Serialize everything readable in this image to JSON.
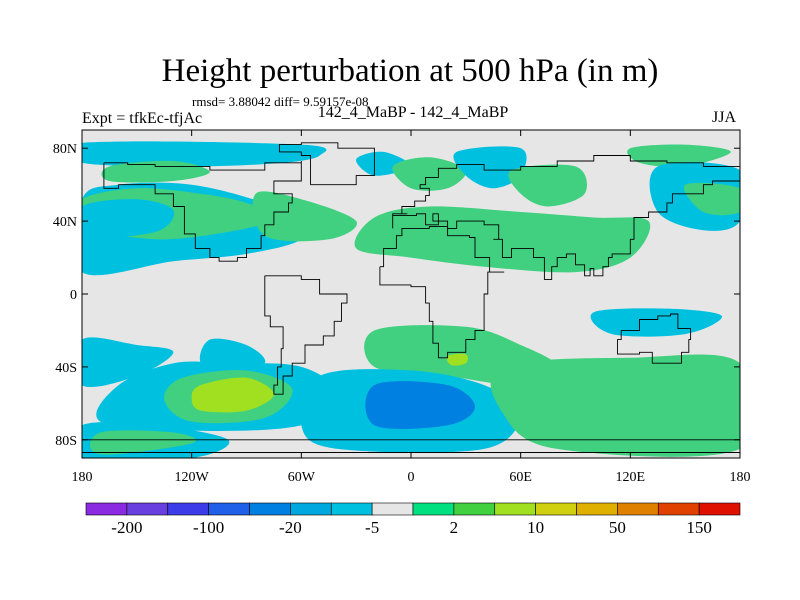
{
  "title": "Height perturbation at 500 hPa (in m)",
  "stats": "rmsd= 3.88042 diff= 9.59157e-08",
  "experiment": "Expt = tfkEc-tfjAc",
  "case_label": "142_4_MaBP - 142_4_MaBP",
  "season": "JJA",
  "map": {
    "lon_range": [
      -180,
      180
    ],
    "lat_range": [
      -90,
      90
    ],
    "x_ticks": [
      {
        "value": -180,
        "label": "180"
      },
      {
        "value": -120,
        "label": "120W"
      },
      {
        "value": -60,
        "label": "60W"
      },
      {
        "value": 0,
        "label": "0"
      },
      {
        "value": 60,
        "label": "60E"
      },
      {
        "value": 120,
        "label": "120E"
      },
      {
        "value": 180,
        "label": "180"
      }
    ],
    "y_ticks": [
      {
        "value": 80,
        "label": "80N"
      },
      {
        "value": 40,
        "label": "40N"
      },
      {
        "value": 0,
        "label": "0"
      },
      {
        "value": -40,
        "label": "40S"
      },
      {
        "value": -80,
        "label": "80S"
      }
    ],
    "background_color": "#e6e6e6",
    "fields": [
      {
        "color": "#00c0e0",
        "pts": [
          [
            -180,
            83
          ],
          [
            -60,
            82
          ],
          [
            -50,
            76
          ],
          [
            -70,
            72
          ],
          [
            -120,
            70
          ],
          [
            -180,
            72
          ]
        ]
      },
      {
        "color": "#00c0e0",
        "pts": [
          [
            -180,
            52
          ],
          [
            -160,
            60
          ],
          [
            -120,
            60
          ],
          [
            -80,
            50
          ],
          [
            -65,
            42
          ],
          [
            -60,
            30
          ],
          [
            -90,
            22
          ],
          [
            -130,
            18
          ],
          [
            -180,
            12
          ]
        ]
      },
      {
        "color": "#40d080",
        "pts": [
          [
            -180,
            52
          ],
          [
            -150,
            58
          ],
          [
            -115,
            55
          ],
          [
            -90,
            50
          ],
          [
            -75,
            42
          ],
          [
            -95,
            35
          ],
          [
            -140,
            30
          ],
          [
            -180,
            38
          ]
        ]
      },
      {
        "color": "#00c0e0",
        "pts": [
          [
            -180,
            48
          ],
          [
            -150,
            52
          ],
          [
            -130,
            46
          ],
          [
            -140,
            34
          ],
          [
            -180,
            32
          ]
        ]
      },
      {
        "color": "#40d080",
        "pts": [
          [
            -165,
            70
          ],
          [
            -130,
            73
          ],
          [
            -110,
            67
          ],
          [
            -130,
            62
          ],
          [
            -165,
            62
          ]
        ]
      },
      {
        "color": "#40d080",
        "pts": [
          [
            -85,
            55
          ],
          [
            -60,
            52
          ],
          [
            -30,
            40
          ],
          [
            -45,
            30
          ],
          [
            -80,
            32
          ]
        ]
      },
      {
        "color": "#00c0e0",
        "pts": [
          [
            -30,
            74
          ],
          [
            -15,
            78
          ],
          [
            0,
            70
          ],
          [
            -20,
            65
          ]
        ]
      },
      {
        "color": "#40d080",
        "pts": [
          [
            -10,
            70
          ],
          [
            10,
            75
          ],
          [
            30,
            68
          ],
          [
            20,
            58
          ],
          [
            0,
            58
          ]
        ]
      },
      {
        "color": "#40d080",
        "pts": [
          [
            -20,
            42
          ],
          [
            10,
            48
          ],
          [
            60,
            45
          ],
          [
            100,
            42
          ],
          [
            130,
            40
          ],
          [
            120,
            20
          ],
          [
            90,
            12
          ],
          [
            40,
            15
          ],
          [
            0,
            20
          ],
          [
            -30,
            25
          ]
        ]
      },
      {
        "color": "#00c0e0",
        "pts": [
          [
            25,
            78
          ],
          [
            60,
            80
          ],
          [
            60,
            65
          ],
          [
            45,
            58
          ],
          [
            30,
            65
          ]
        ]
      },
      {
        "color": "#40d080",
        "pts": [
          [
            55,
            68
          ],
          [
            90,
            70
          ],
          [
            95,
            55
          ],
          [
            75,
            48
          ],
          [
            60,
            55
          ]
        ]
      },
      {
        "color": "#40d080",
        "pts": [
          [
            120,
            80
          ],
          [
            150,
            82
          ],
          [
            175,
            78
          ],
          [
            150,
            70
          ],
          [
            125,
            72
          ]
        ]
      },
      {
        "color": "#00c0e0",
        "pts": [
          [
            135,
            70
          ],
          [
            180,
            68
          ],
          [
            180,
            40
          ],
          [
            160,
            35
          ],
          [
            135,
            45
          ]
        ]
      },
      {
        "color": "#40d080",
        "pts": [
          [
            150,
            60
          ],
          [
            180,
            58
          ],
          [
            180,
            45
          ],
          [
            160,
            45
          ]
        ]
      },
      {
        "color": "#00c0e0",
        "pts": [
          [
            100,
            -10
          ],
          [
            140,
            -8
          ],
          [
            170,
            -12
          ],
          [
            150,
            -22
          ],
          [
            110,
            -22
          ]
        ]
      },
      {
        "color": "#00c0e0",
        "pts": [
          [
            -180,
            -25
          ],
          [
            -150,
            -28
          ],
          [
            -130,
            -32
          ],
          [
            -150,
            -45
          ],
          [
            -180,
            -50
          ]
        ]
      },
      {
        "color": "#00c0e0",
        "pts": [
          [
            -110,
            -25
          ],
          [
            -90,
            -28
          ],
          [
            -80,
            -38
          ],
          [
            -100,
            -45
          ],
          [
            -115,
            -38
          ]
        ]
      },
      {
        "color": "#00c0e0",
        "pts": [
          [
            -130,
            -38
          ],
          [
            -100,
            -38
          ],
          [
            -60,
            -40
          ],
          [
            -40,
            -55
          ],
          [
            -60,
            -72
          ],
          [
            -120,
            -75
          ],
          [
            -170,
            -70
          ],
          [
            -160,
            -50
          ]
        ]
      },
      {
        "color": "#40d080",
        "pts": [
          [
            -125,
            -46
          ],
          [
            -90,
            -42
          ],
          [
            -65,
            -52
          ],
          [
            -80,
            -68
          ],
          [
            -120,
            -70
          ],
          [
            -135,
            -58
          ]
        ]
      },
      {
        "color": "#a0e020",
        "pts": [
          [
            -115,
            -50
          ],
          [
            -90,
            -46
          ],
          [
            -75,
            -55
          ],
          [
            -90,
            -64
          ],
          [
            -115,
            -64
          ],
          [
            -120,
            -57
          ]
        ]
      },
      {
        "color": "#40d080",
        "pts": [
          [
            -20,
            -20
          ],
          [
            30,
            -18
          ],
          [
            60,
            -28
          ],
          [
            80,
            -40
          ],
          [
            60,
            -50
          ],
          [
            20,
            -45
          ],
          [
            -20,
            -40
          ]
        ]
      },
      {
        "color": "#a0e020",
        "pts": [
          [
            20,
            -34
          ],
          [
            30,
            -33
          ],
          [
            30,
            -38
          ],
          [
            22,
            -39
          ]
        ]
      },
      {
        "color": "#00c0e0",
        "pts": [
          [
            -50,
            -45
          ],
          [
            0,
            -42
          ],
          [
            40,
            -50
          ],
          [
            60,
            -65
          ],
          [
            40,
            -85
          ],
          [
            -40,
            -85
          ],
          [
            -60,
            -72
          ]
        ]
      },
      {
        "color": "#0080e0",
        "pts": [
          [
            -20,
            -50
          ],
          [
            20,
            -50
          ],
          [
            35,
            -62
          ],
          [
            20,
            -72
          ],
          [
            -20,
            -72
          ]
        ]
      },
      {
        "color": "#40d080",
        "pts": [
          [
            50,
            -40
          ],
          [
            120,
            -35
          ],
          [
            180,
            -38
          ],
          [
            180,
            -85
          ],
          [
            80,
            -85
          ],
          [
            50,
            -65
          ]
        ]
      },
      {
        "color": "#00c0e0",
        "pts": [
          [
            -180,
            -72
          ],
          [
            -140,
            -72
          ],
          [
            -100,
            -80
          ],
          [
            -120,
            -90
          ],
          [
            -180,
            -90
          ]
        ]
      },
      {
        "color": "#40d080",
        "pts": [
          [
            -170,
            -76
          ],
          [
            -130,
            -76
          ],
          [
            -120,
            -82
          ],
          [
            -170,
            -88
          ]
        ]
      }
    ],
    "coastlines": [
      [
        [
          -168,
          72
        ],
        [
          -155,
          71
        ],
        [
          -140,
          70
        ],
        [
          -128,
          70
        ],
        [
          -110,
          68
        ],
        [
          -95,
          68
        ],
        [
          -80,
          72
        ],
        [
          -60,
          73
        ],
        [
          -60,
          62
        ],
        [
          -75,
          55
        ],
        [
          -65,
          50
        ],
        [
          -67,
          45
        ],
        [
          -75,
          38
        ],
        [
          -80,
          32
        ],
        [
          -82,
          25
        ],
        [
          -90,
          20
        ],
        [
          -95,
          18
        ],
        [
          -105,
          20
        ],
        [
          -110,
          25
        ],
        [
          -118,
          33
        ],
        [
          -124,
          40
        ],
        [
          -124,
          48
        ],
        [
          -130,
          55
        ],
        [
          -140,
          60
        ],
        [
          -150,
          60
        ],
        [
          -160,
          58
        ],
        [
          -168,
          65
        ],
        [
          -168,
          72
        ]
      ],
      [
        [
          -80,
          10
        ],
        [
          -75,
          10
        ],
        [
          -60,
          8
        ],
        [
          -50,
          0
        ],
        [
          -35,
          -5
        ],
        [
          -38,
          -15
        ],
        [
          -42,
          -23
        ],
        [
          -48,
          -28
        ],
        [
          -58,
          -38
        ],
        [
          -65,
          -45
        ],
        [
          -70,
          -55
        ],
        [
          -75,
          -50
        ],
        [
          -73,
          -40
        ],
        [
          -71,
          -30
        ],
        [
          -70,
          -18
        ],
        [
          -77,
          -12
        ],
        [
          -80,
          -5
        ],
        [
          -80,
          3
        ],
        [
          -80,
          10
        ]
      ],
      [
        [
          -17,
          15
        ],
        [
          -15,
          25
        ],
        [
          -8,
          32
        ],
        [
          -5,
          36
        ],
        [
          10,
          37
        ],
        [
          20,
          32
        ],
        [
          32,
          31
        ],
        [
          35,
          20
        ],
        [
          43,
          12
        ],
        [
          51,
          12
        ],
        [
          42,
          0
        ],
        [
          40,
          -10
        ],
        [
          40,
          -20
        ],
        [
          35,
          -25
        ],
        [
          30,
          -32
        ],
        [
          20,
          -35
        ],
        [
          15,
          -27
        ],
        [
          12,
          -15
        ],
        [
          10,
          -5
        ],
        [
          8,
          4
        ],
        [
          0,
          5
        ],
        [
          -10,
          5
        ],
        [
          -17,
          15
        ]
      ],
      [
        [
          -10,
          36
        ],
        [
          -10,
          44
        ],
        [
          -2,
          44
        ],
        [
          -5,
          48
        ],
        [
          2,
          51
        ],
        [
          8,
          54
        ],
        [
          10,
          58
        ],
        [
          5,
          60
        ],
        [
          8,
          64
        ],
        [
          15,
          69
        ],
        [
          25,
          71
        ],
        [
          40,
          68
        ],
        [
          60,
          70
        ],
        [
          80,
          73
        ],
        [
          100,
          76
        ],
        [
          120,
          73
        ],
        [
          140,
          72
        ],
        [
          160,
          70
        ],
        [
          180,
          68
        ],
        [
          180,
          62
        ],
        [
          165,
          60
        ],
        [
          160,
          55
        ],
        [
          143,
          50
        ],
        [
          140,
          45
        ],
        [
          130,
          42
        ],
        [
          122,
          40
        ],
        [
          122,
          30
        ],
        [
          120,
          22
        ],
        [
          110,
          20
        ],
        [
          108,
          15
        ],
        [
          105,
          10
        ],
        [
          100,
          14
        ],
        [
          98,
          10
        ],
        [
          95,
          16
        ],
        [
          90,
          22
        ],
        [
          85,
          20
        ],
        [
          80,
          15
        ],
        [
          77,
          8
        ],
        [
          73,
          20
        ],
        [
          67,
          25
        ],
        [
          57,
          25
        ],
        [
          55,
          20
        ],
        [
          50,
          30
        ],
        [
          45,
          30
        ],
        [
          48,
          38
        ],
        [
          40,
          40
        ],
        [
          30,
          40
        ],
        [
          25,
          36
        ],
        [
          20,
          40
        ],
        [
          12,
          44
        ],
        [
          15,
          38
        ],
        [
          8,
          44
        ],
        [
          3,
          43
        ],
        [
          -10,
          36
        ]
      ],
      [
        [
          -55,
          60
        ],
        [
          -45,
          60
        ],
        [
          -30,
          65
        ],
        [
          -20,
          72
        ],
        [
          -20,
          80
        ],
        [
          -40,
          83
        ],
        [
          -60,
          82
        ],
        [
          -72,
          78
        ],
        [
          -60,
          76
        ],
        [
          -55,
          60
        ]
      ],
      [
        [
          115,
          -20
        ],
        [
          125,
          -14
        ],
        [
          135,
          -12
        ],
        [
          142,
          -11
        ],
        [
          146,
          -19
        ],
        [
          153,
          -25
        ],
        [
          152,
          -32
        ],
        [
          148,
          -38
        ],
        [
          140,
          -38
        ],
        [
          132,
          -32
        ],
        [
          125,
          -33
        ],
        [
          115,
          -33
        ],
        [
          113,
          -25
        ],
        [
          115,
          -20
        ]
      ],
      [
        [
          -180,
          -80
        ],
        [
          180,
          -80
        ]
      ],
      [
        [
          -180,
          -87
        ],
        [
          180,
          -87
        ]
      ]
    ]
  },
  "colorbar": {
    "labels": [
      "-200",
      "-100",
      "-20",
      "-5",
      "2",
      "10",
      "50",
      "150"
    ],
    "colors": [
      "#8a2be2",
      "#6a3fe0",
      "#3c3ce8",
      "#2060e8",
      "#0080e0",
      "#00a8e0",
      "#00c0e0",
      "#e6e6e6",
      "#00e080",
      "#40d040",
      "#a0e020",
      "#d0d010",
      "#e0b000",
      "#e08000",
      "#e04000",
      "#e01000"
    ]
  }
}
